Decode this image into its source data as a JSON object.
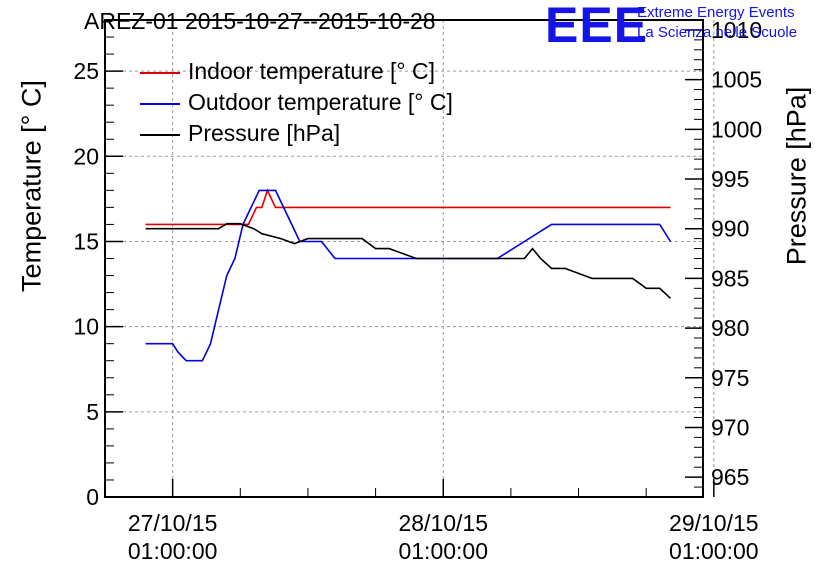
{
  "title": "AREZ-01 2015-10-27--2015-10-28",
  "logo": {
    "mark": "EEE",
    "line1": "Extreme Energy Events",
    "line2": "La Scienza nelle Scuole"
  },
  "colors": {
    "indoor": "#e00000",
    "outdoor": "#0000e0",
    "pressure": "#000000",
    "grid": "#9a9a9a"
  },
  "chart_data": {
    "type": "line",
    "ylabel": "Temperature [° C]",
    "ylabel_right": "Pressure [hPa]",
    "ylim": [
      0,
      28
    ],
    "ylim_right": [
      963,
      1011
    ],
    "yticks": [
      0,
      5,
      10,
      15,
      20,
      25
    ],
    "yticks_right": [
      965,
      970,
      975,
      980,
      985,
      990,
      995,
      1000,
      1005,
      1010
    ],
    "xlim": [
      -0.25,
      1.96
    ],
    "xticks": [
      {
        "x": 0,
        "line1": "27/10/15",
        "line2": "01:00:00"
      },
      {
        "x": 1,
        "line1": "28/10/15",
        "line2": "01:00:00"
      },
      {
        "x": 2,
        "line1": "29/10/15",
        "line2": "01:00:00"
      }
    ],
    "grid": true,
    "legend_position": "top-left",
    "series": [
      {
        "name": "Indoor temperature [° C]",
        "axis": "left",
        "x": [
          -0.1,
          -0.05,
          0.0,
          0.05,
          0.1,
          0.15,
          0.2,
          0.25,
          0.28,
          0.31,
          0.33,
          0.35,
          0.38,
          0.4,
          0.45,
          0.5,
          0.6,
          0.7,
          0.8,
          0.9,
          1.0,
          1.1,
          1.2,
          1.3,
          1.4,
          1.5,
          1.6,
          1.7,
          1.8,
          1.84
        ],
        "y": [
          16,
          16,
          16,
          16,
          16,
          16,
          16,
          16,
          16,
          17,
          17,
          18,
          17,
          17,
          17,
          17,
          17,
          17,
          17,
          17,
          17,
          17,
          17,
          17,
          17,
          17,
          17,
          17,
          17,
          17
        ]
      },
      {
        "name": "Outdoor temperature [° C]",
        "axis": "left",
        "x": [
          -0.1,
          0.0,
          0.02,
          0.05,
          0.08,
          0.11,
          0.14,
          0.17,
          0.2,
          0.23,
          0.26,
          0.29,
          0.32,
          0.35,
          0.38,
          0.41,
          0.44,
          0.47,
          0.5,
          0.55,
          0.6,
          0.7,
          0.8,
          0.9,
          1.0,
          1.1,
          1.2,
          1.3,
          1.4,
          1.5,
          1.6,
          1.7,
          1.8,
          1.84
        ],
        "y": [
          9,
          9,
          8.5,
          8,
          8,
          8,
          9,
          11,
          13,
          14,
          16,
          17,
          18,
          18,
          18,
          17,
          16,
          15,
          15,
          15,
          14,
          14,
          14,
          14,
          14,
          14,
          14,
          15,
          16,
          16,
          16,
          16,
          16,
          15
        ]
      },
      {
        "name": "Pressure [hPa]",
        "axis": "right",
        "x": [
          -0.1,
          0.0,
          0.1,
          0.17,
          0.2,
          0.25,
          0.3,
          0.33,
          0.4,
          0.45,
          0.5,
          0.6,
          0.7,
          0.75,
          0.8,
          0.85,
          0.9,
          1.0,
          1.1,
          1.2,
          1.3,
          1.33,
          1.36,
          1.4,
          1.45,
          1.5,
          1.55,
          1.6,
          1.7,
          1.75,
          1.8,
          1.84
        ],
        "y": [
          990,
          990,
          990,
          990,
          990.5,
          990.5,
          990,
          989.5,
          989,
          988.5,
          989,
          989,
          989,
          988,
          988,
          987.5,
          987,
          987,
          987,
          987,
          987,
          988,
          987,
          986,
          986,
          985.5,
          985,
          985,
          985,
          984,
          984,
          983
        ]
      }
    ]
  }
}
